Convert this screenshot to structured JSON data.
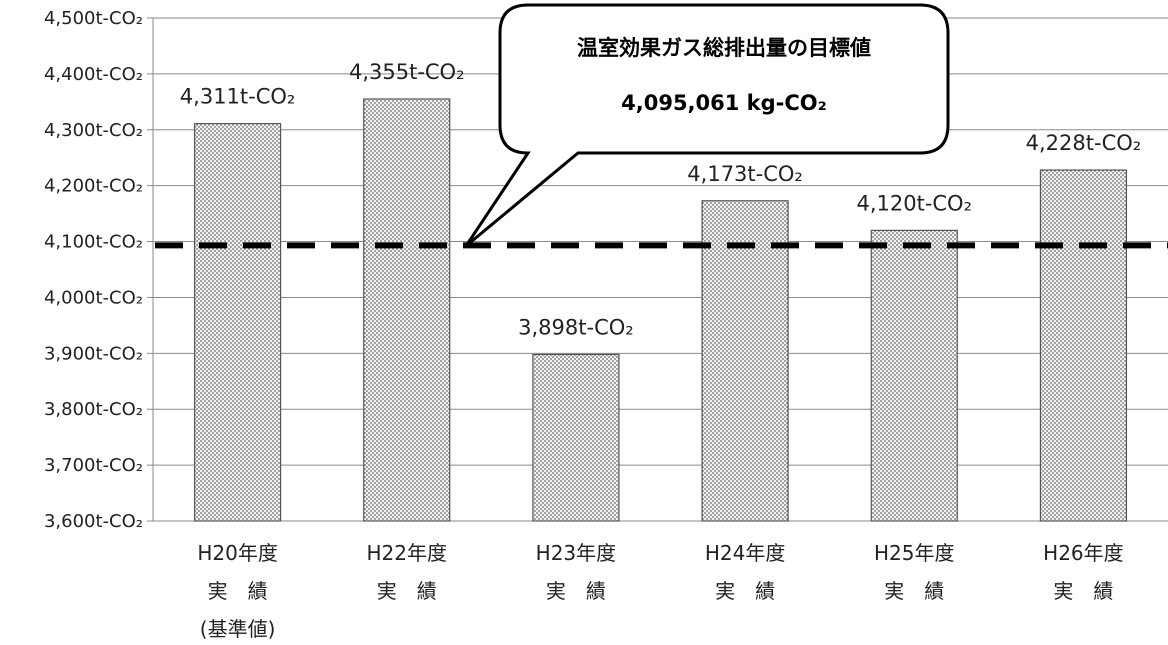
{
  "chart_data": {
    "type": "bar",
    "categories": [
      {
        "line1": "H20年度",
        "line2": "実　績",
        "line3": "(基準値)"
      },
      {
        "line1": "H22年度",
        "line2": "実　績",
        "line3": ""
      },
      {
        "line1": "H23年度",
        "line2": "実　績",
        "line3": ""
      },
      {
        "line1": "H24年度",
        "line2": "実　績",
        "line3": ""
      },
      {
        "line1": "H25年度",
        "line2": "実　績",
        "line3": ""
      },
      {
        "line1": "H26年度",
        "line2": "実　績",
        "line3": ""
      }
    ],
    "values": [
      4311,
      4355,
      3898,
      4173,
      4120,
      4228
    ],
    "data_labels": [
      "4,311t-CO₂",
      "4,355t-CO₂",
      "3,898t-CO₂",
      "4,173t-CO₂",
      "4,120t-CO₂",
      "4,228t-CO₂"
    ],
    "ylim": [
      3600,
      4500
    ],
    "yticks": [
      {
        "value": 4500,
        "label": "4,500t-CO₂"
      },
      {
        "value": 4400,
        "label": "4,400t-CO₂"
      },
      {
        "value": 4300,
        "label": "4,300t-CO₂"
      },
      {
        "value": 4200,
        "label": "4,200t-CO₂"
      },
      {
        "value": 4100,
        "label": "4,100t-CO₂"
      },
      {
        "value": 4000,
        "label": "4,000t-CO₂"
      },
      {
        "value": 3900,
        "label": "3,900t-CO₂"
      },
      {
        "value": 3800,
        "label": "3,800t-CO₂"
      },
      {
        "value": 3700,
        "label": "3,700t-CO₂"
      },
      {
        "value": 3600,
        "label": "3,600t-CO₂"
      }
    ],
    "grid": true,
    "target_line": {
      "value": 4095.061,
      "style": "dashed",
      "callout_title": "温室効果ガス総排出量の目標値",
      "callout_value": "4,095,061 kg-CO₂"
    },
    "bar_fill": "dotted gray pattern"
  }
}
